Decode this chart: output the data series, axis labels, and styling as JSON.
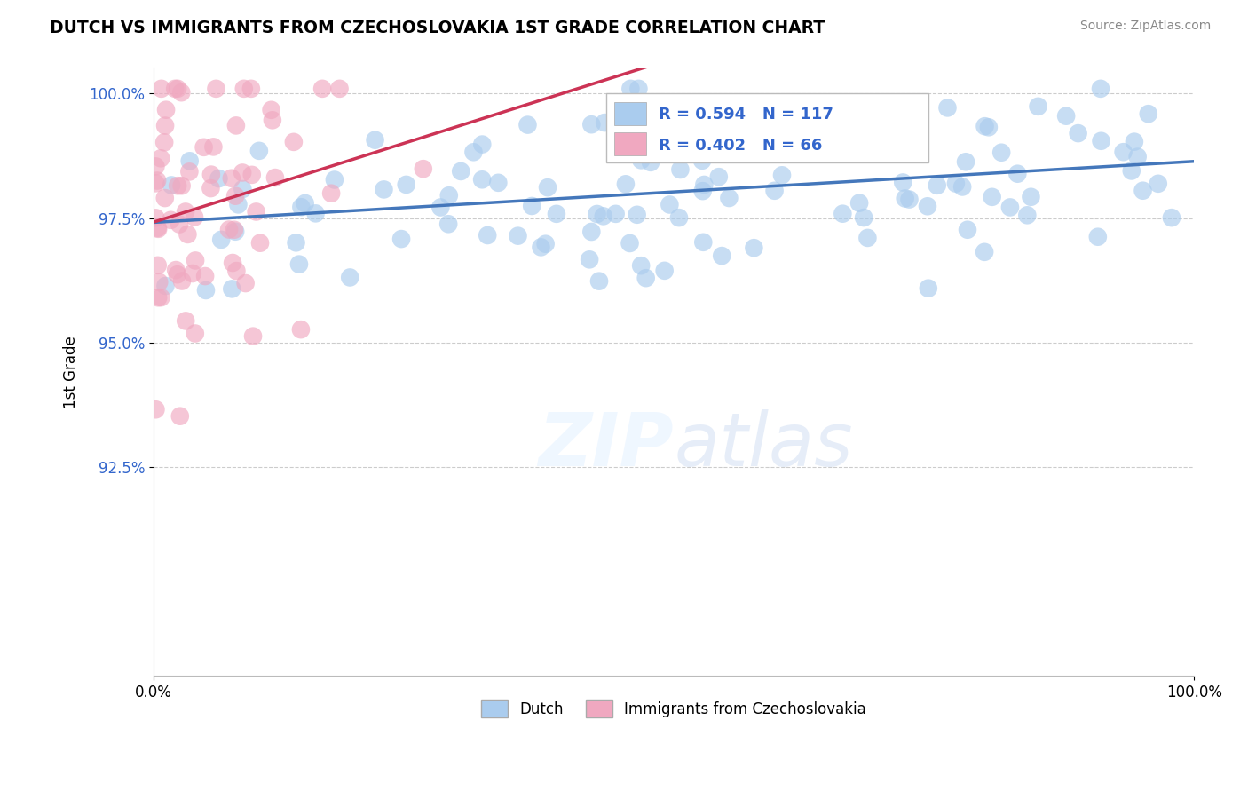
{
  "title": "DUTCH VS IMMIGRANTS FROM CZECHOSLOVAKIA 1ST GRADE CORRELATION CHART",
  "source": "Source: ZipAtlas.com",
  "ylabel": "1st Grade",
  "xlim": [
    0.0,
    1.0
  ],
  "ylim": [
    0.883,
    1.005
  ],
  "yticks": [
    0.925,
    0.95,
    0.975,
    1.0
  ],
  "ytick_labels": [
    "92.5%",
    "95.0%",
    "97.5%",
    "100.0%"
  ],
  "xtick_labels": [
    "0.0%",
    "100.0%"
  ],
  "legend_blue_label": "Dutch",
  "legend_pink_label": "Immigrants from Czechoslovakia",
  "R_blue": 0.594,
  "N_blue": 117,
  "R_pink": 0.402,
  "N_pink": 66,
  "blue_color": "#aaccee",
  "blue_line_color": "#4477bb",
  "pink_color": "#f0a8c0",
  "pink_line_color": "#cc3355",
  "background_color": "#ffffff",
  "grid_color": "#cccccc"
}
